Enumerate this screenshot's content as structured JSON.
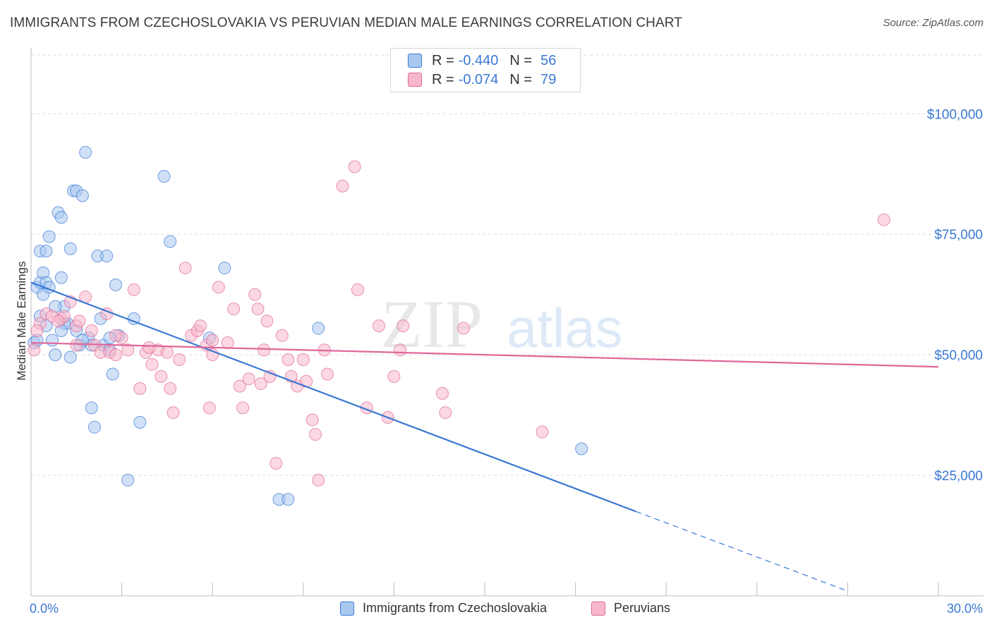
{
  "title": "IMMIGRANTS FROM CZECHOSLOVAKIA VS PERUVIAN MEDIAN MALE EARNINGS CORRELATION CHART",
  "source": "Source: ZipAtlas.com",
  "watermark": {
    "zip": "ZIP",
    "atlas": "atlas"
  },
  "legend_top": {
    "rows": [
      {
        "r_label": "R =",
        "r_value": "-0.440",
        "n_label": "N =",
        "n_value": "56",
        "color": "#a9c8f0"
      },
      {
        "r_label": "R =",
        "r_value": "-0.074",
        "n_label": "N =",
        "n_value": "79",
        "color": "#f7b8cb"
      }
    ]
  },
  "legend_bottom": {
    "items": [
      {
        "label": "Immigrants from Czechoslovakia",
        "color": "#a9c8f0"
      },
      {
        "label": "Peruvians",
        "color": "#f7b8cb"
      }
    ]
  },
  "chart_data": {
    "type": "scatter",
    "ylabel": "Median Male Earnings",
    "xlabel": "",
    "xlim": [
      0,
      30
    ],
    "ylim": [
      0,
      105000
    ],
    "x_tick_labels": [
      "0.0%",
      "30.0%"
    ],
    "y_ticks": [
      25000,
      50000,
      75000,
      100000
    ],
    "y_tick_labels": [
      "$25,000",
      "$50,000",
      "$75,000",
      "$100,000"
    ],
    "grid": true,
    "series": [
      {
        "name": "Immigrants from Czechoslovakia",
        "color": "#3a78d4",
        "fill": "#a9c8f0",
        "trend": {
          "x": [
            0,
            20.0
          ],
          "y": [
            65000,
            17500
          ],
          "dashed_to": [
            27.0,
            1000
          ]
        },
        "points": [
          [
            0.1,
            52500
          ],
          [
            0.2,
            64000
          ],
          [
            0.3,
            65000
          ],
          [
            0.3,
            71500
          ],
          [
            0.4,
            67000
          ],
          [
            0.4,
            62500
          ],
          [
            0.5,
            71500
          ],
          [
            0.5,
            65000
          ],
          [
            0.6,
            74500
          ],
          [
            0.6,
            64000
          ],
          [
            0.7,
            53000
          ],
          [
            0.8,
            50000
          ],
          [
            0.9,
            79500
          ],
          [
            1.0,
            66000
          ],
          [
            1.0,
            78500
          ],
          [
            1.1,
            60000
          ],
          [
            1.2,
            56500
          ],
          [
            1.3,
            49500
          ],
          [
            1.3,
            72000
          ],
          [
            1.4,
            84000
          ],
          [
            1.5,
            84000
          ],
          [
            1.5,
            55000
          ],
          [
            1.6,
            52000
          ],
          [
            1.7,
            83000
          ],
          [
            1.8,
            92000
          ],
          [
            1.9,
            53500
          ],
          [
            2.0,
            39000
          ],
          [
            2.1,
            35000
          ],
          [
            2.2,
            70500
          ],
          [
            2.3,
            57500
          ],
          [
            2.4,
            52000
          ],
          [
            2.5,
            70500
          ],
          [
            2.6,
            51000
          ],
          [
            2.7,
            46000
          ],
          [
            2.8,
            64500
          ],
          [
            2.9,
            54000
          ],
          [
            3.2,
            24000
          ],
          [
            3.4,
            57500
          ],
          [
            3.6,
            36000
          ],
          [
            4.4,
            87000
          ],
          [
            4.6,
            73500
          ],
          [
            5.9,
            53500
          ],
          [
            6.4,
            68000
          ],
          [
            8.2,
            20000
          ],
          [
            8.5,
            20000
          ],
          [
            9.5,
            55500
          ],
          [
            18.2,
            30500
          ],
          [
            0.2,
            53000
          ],
          [
            1.1,
            56500
          ],
          [
            2.0,
            52000
          ],
          [
            0.8,
            60000
          ],
          [
            1.7,
            53000
          ],
          [
            0.5,
            56000
          ],
          [
            2.6,
            53500
          ],
          [
            1.0,
            55000
          ],
          [
            0.3,
            58000
          ]
        ]
      },
      {
        "name": "Peruvians",
        "color": "#e0679a",
        "fill": "#f7b8cb",
        "trend": {
          "x": [
            0,
            30.0
          ],
          "y": [
            52500,
            47500
          ]
        },
        "points": [
          [
            0.1,
            51000
          ],
          [
            0.3,
            56500
          ],
          [
            0.5,
            58500
          ],
          [
            0.7,
            58000
          ],
          [
            1.0,
            57500
          ],
          [
            1.1,
            58000
          ],
          [
            1.3,
            61000
          ],
          [
            1.5,
            56000
          ],
          [
            1.6,
            57000
          ],
          [
            1.8,
            62000
          ],
          [
            2.0,
            55000
          ],
          [
            2.1,
            52000
          ],
          [
            2.3,
            50500
          ],
          [
            2.5,
            58500
          ],
          [
            2.6,
            50500
          ],
          [
            2.8,
            50000
          ],
          [
            3.0,
            53500
          ],
          [
            3.2,
            51000
          ],
          [
            3.4,
            63500
          ],
          [
            3.6,
            43000
          ],
          [
            3.8,
            50500
          ],
          [
            4.0,
            48000
          ],
          [
            4.2,
            51000
          ],
          [
            4.3,
            45500
          ],
          [
            4.5,
            50500
          ],
          [
            4.6,
            43000
          ],
          [
            4.7,
            38000
          ],
          [
            4.9,
            49000
          ],
          [
            5.1,
            68000
          ],
          [
            5.3,
            54000
          ],
          [
            5.5,
            55000
          ],
          [
            5.6,
            56000
          ],
          [
            5.8,
            52000
          ],
          [
            5.9,
            39000
          ],
          [
            6.0,
            50000
          ],
          [
            6.2,
            64000
          ],
          [
            6.5,
            52500
          ],
          [
            6.7,
            59500
          ],
          [
            6.9,
            43500
          ],
          [
            7.0,
            39000
          ],
          [
            7.2,
            45000
          ],
          [
            7.4,
            62500
          ],
          [
            7.5,
            59500
          ],
          [
            7.6,
            44000
          ],
          [
            7.7,
            51000
          ],
          [
            7.8,
            57000
          ],
          [
            7.9,
            45500
          ],
          [
            8.1,
            27500
          ],
          [
            8.3,
            54000
          ],
          [
            8.5,
            49000
          ],
          [
            8.6,
            45500
          ],
          [
            8.8,
            43500
          ],
          [
            9.0,
            49000
          ],
          [
            9.1,
            44500
          ],
          [
            9.3,
            36500
          ],
          [
            9.4,
            33500
          ],
          [
            9.5,
            24000
          ],
          [
            9.7,
            51000
          ],
          [
            9.8,
            46000
          ],
          [
            10.3,
            85000
          ],
          [
            10.7,
            89000
          ],
          [
            10.8,
            63500
          ],
          [
            11.1,
            39000
          ],
          [
            11.5,
            56000
          ],
          [
            11.8,
            37000
          ],
          [
            12.0,
            45500
          ],
          [
            12.2,
            51000
          ],
          [
            12.3,
            56000
          ],
          [
            13.6,
            42000
          ],
          [
            13.7,
            38000
          ],
          [
            14.3,
            55500
          ],
          [
            16.9,
            34000
          ],
          [
            28.2,
            78000
          ],
          [
            1.5,
            52000
          ],
          [
            0.2,
            55000
          ],
          [
            2.8,
            54000
          ],
          [
            6.0,
            53000
          ],
          [
            3.9,
            51500
          ],
          [
            0.9,
            57000
          ]
        ]
      }
    ]
  }
}
